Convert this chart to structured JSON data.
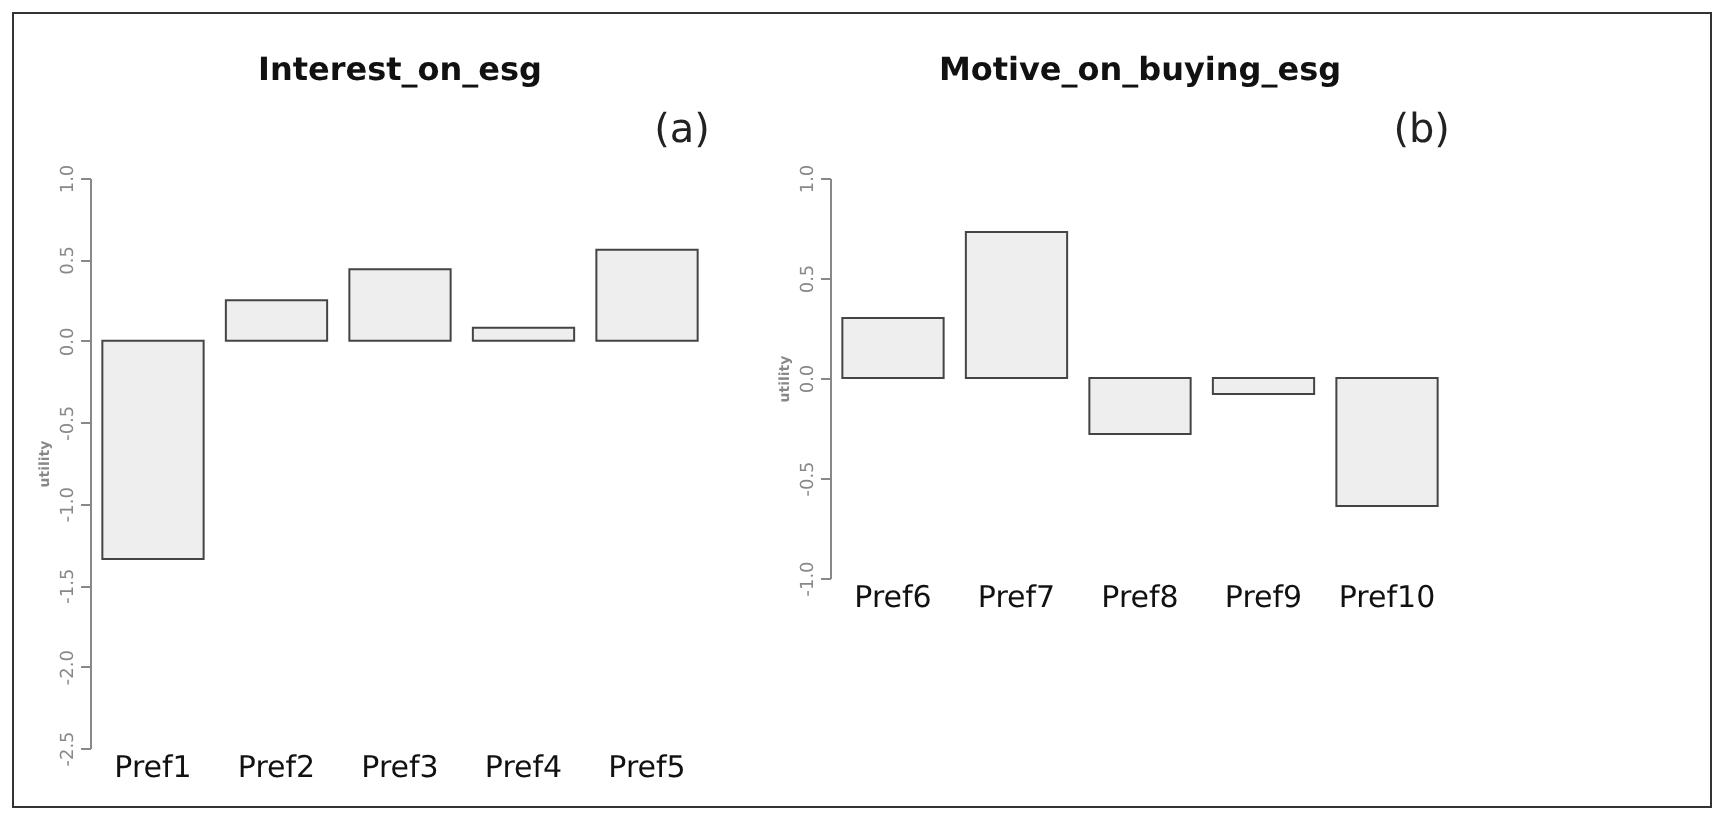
{
  "chart_data": [
    {
      "type": "bar",
      "title": "Interest_on_esg",
      "ylabel": "utility",
      "annotations": [
        "(a)"
      ],
      "categories": [
        "Pref1",
        "Pref2",
        "Pref3",
        "Pref4",
        "Pref5"
      ],
      "values": [
        -1.34,
        0.25,
        0.44,
        0.08,
        0.56
      ],
      "color": "#eeeeee",
      "ylim": [
        -2.5,
        1.0
      ],
      "yticks": [
        {
          "value": -2.5,
          "label": "-2.5"
        },
        {
          "value": -2,
          "label": "-2.0"
        },
        {
          "value": -1.5,
          "label": "-1.5"
        },
        {
          "value": -1,
          "label": "-1.0"
        },
        {
          "value": -0.5,
          "label": "-0.5"
        },
        {
          "value": 0,
          "label": "0.0"
        },
        {
          "value": 0.5,
          "label": "0.5"
        },
        {
          "value": 1,
          "label": "1.0"
        }
      ]
    },
    {
      "type": "bar",
      "title": "Motive_on_buying_esg",
      "ylabel": "utility",
      "annotations": [
        "(b)"
      ],
      "categories": [
        "Pref6",
        "Pref7",
        "Pref8",
        "Pref9",
        "Pref10"
      ],
      "values": [
        0.3,
        0.73,
        -0.28,
        -0.08,
        -0.64
      ],
      "color": "#eeeeee",
      "ylim": [
        -1.0,
        1.0
      ],
      "yticks": [
        {
          "value": -1,
          "label": "-1.0"
        },
        {
          "value": -0.5,
          "label": "-0.5"
        },
        {
          "value": 0,
          "label": "0.0"
        },
        {
          "value": 0.5,
          "label": "0.5"
        },
        {
          "value": 1,
          "label": "1.0"
        }
      ]
    }
  ]
}
